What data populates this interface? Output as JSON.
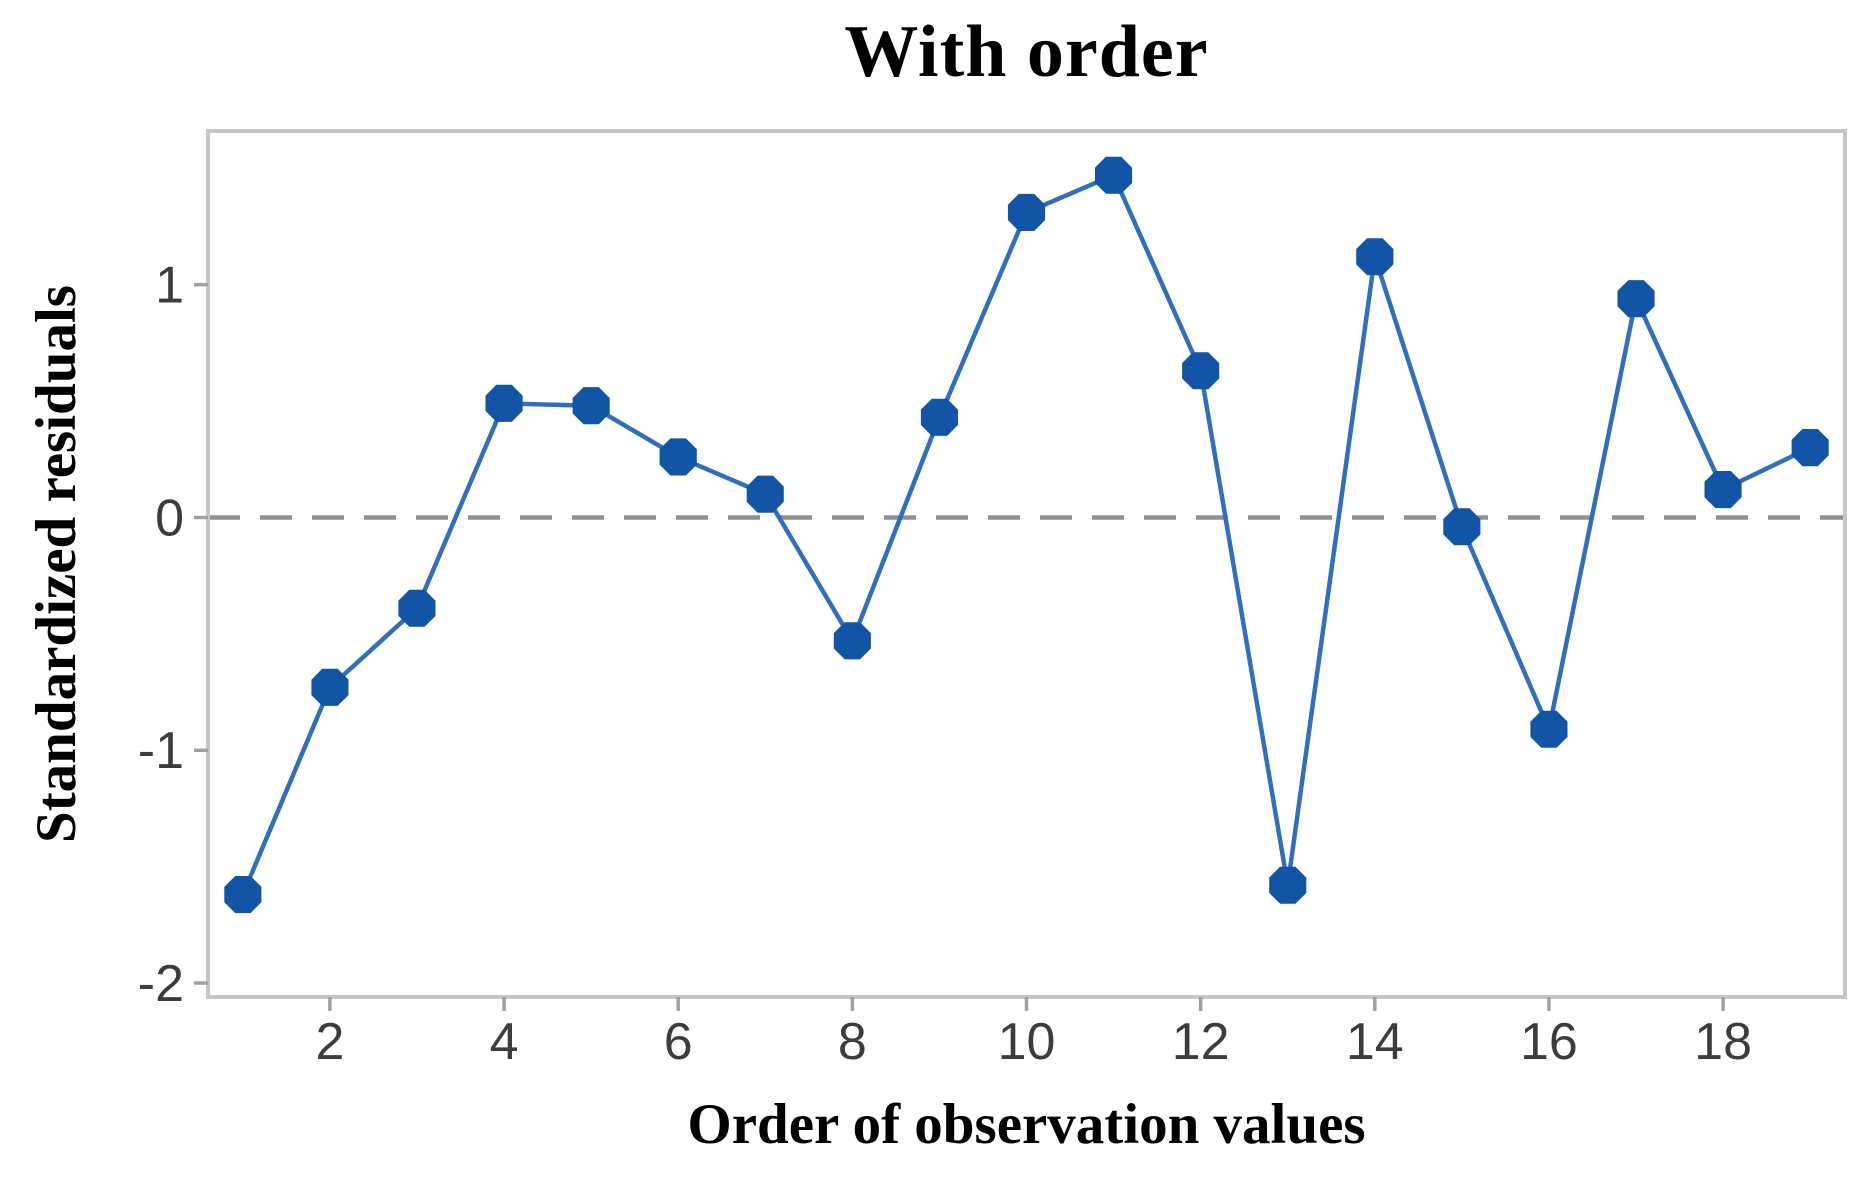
{
  "chart_data": {
    "type": "line",
    "title": "With order",
    "xlabel": "Order of observation values",
    "ylabel": "Standardized residuals",
    "series_name": "Standardized residuals",
    "x": [
      1,
      2,
      3,
      4,
      5,
      6,
      7,
      8,
      9,
      10,
      11,
      12,
      13,
      14,
      15,
      16,
      17,
      18,
      19
    ],
    "values": [
      -1.62,
      -0.73,
      -0.39,
      0.49,
      0.48,
      0.26,
      0.1,
      -0.53,
      0.43,
      1.31,
      1.47,
      0.63,
      -1.58,
      1.12,
      -0.04,
      -0.91,
      0.94,
      0.12,
      0.3
    ],
    "xticks": [
      2,
      4,
      6,
      8,
      10,
      12,
      14,
      16,
      18
    ],
    "yticks": [
      1,
      0,
      -1,
      -2
    ],
    "xlim": [
      0.6,
      19.4
    ],
    "ylim": [
      -2.06,
      1.66
    ],
    "grid": false,
    "legend": false,
    "reference_line_y": 0,
    "marker_shape": "octagon",
    "colors": {
      "marker": "#1254a6",
      "line": "#2f6fbe",
      "zero_line": "#8f8f8f",
      "frame": "#c6c6c6",
      "tick": "#a0a0a0",
      "tick_label": "#3c3c3c",
      "text": "#000000"
    }
  }
}
